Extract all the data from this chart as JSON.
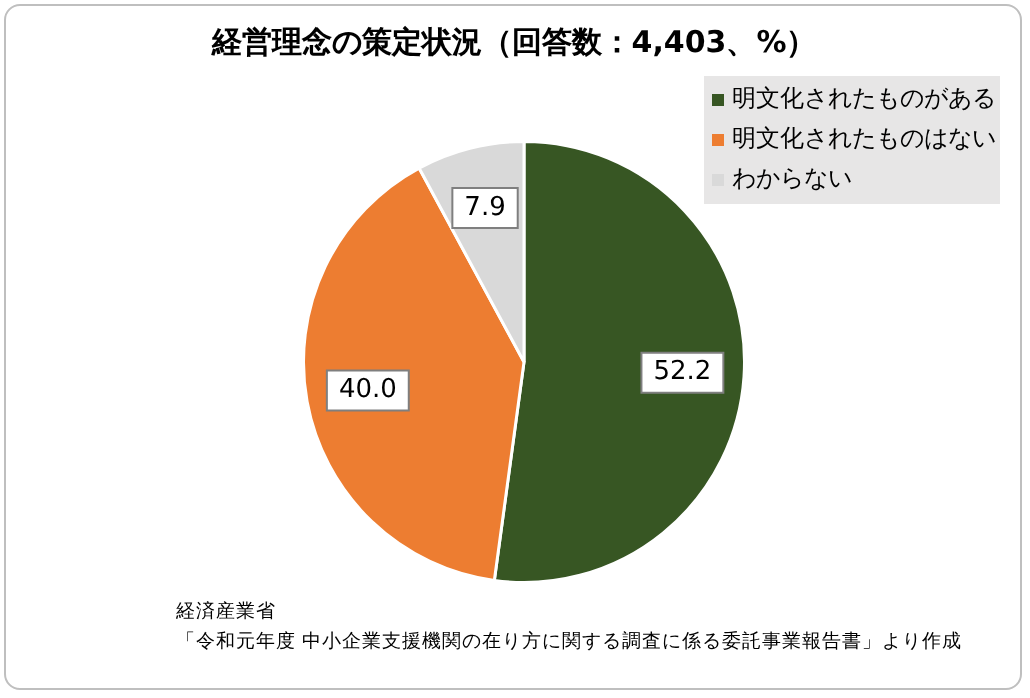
{
  "chart_data": {
    "type": "pie",
    "title": "経営理念の策定状況（回答数：4,403、%）",
    "categories": [
      "明文化されたものがある",
      "明文化されたものはない",
      "わからない"
    ],
    "values": [
      52.2,
      40.0,
      7.9
    ],
    "colors": [
      "#375623",
      "#ed7d31",
      "#d9d9d9"
    ],
    "value_labels": [
      "52.2",
      "40.0",
      "7.9"
    ],
    "legend": "top right",
    "annotations": [
      "経済産業省",
      "「令和元年度 中小企業支援機関の在り方に関する調査に係る委託事業報告書」より作成"
    ]
  }
}
